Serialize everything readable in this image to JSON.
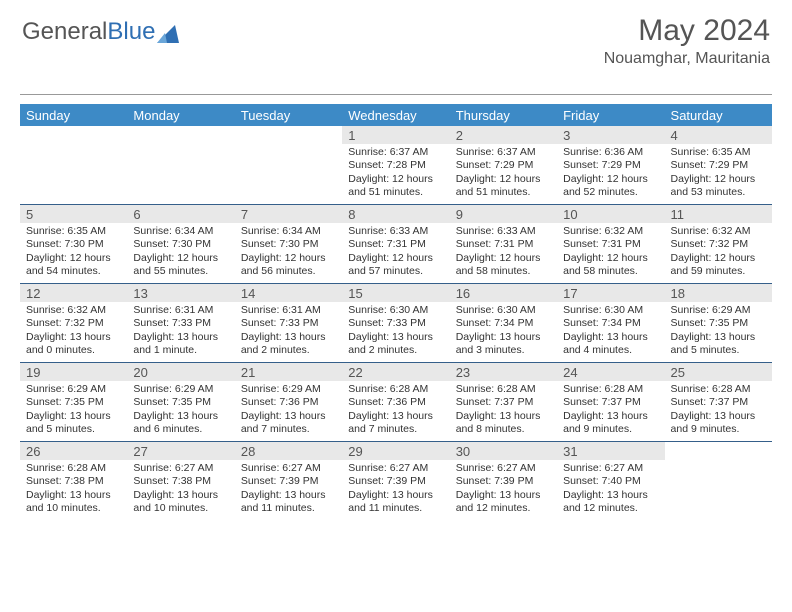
{
  "brand": {
    "part1": "General",
    "part2": "Blue"
  },
  "title": "May 2024",
  "location": "Nouamghar, Mauritania",
  "colors": {
    "header_bg": "#3d8ac6",
    "header_text": "#ffffff",
    "row_border": "#355f8a",
    "daynum_bg": "#e8e8e8",
    "body_text": "#333333",
    "brand_gray": "#555555",
    "brand_blue": "#2f6fb3"
  },
  "day_headers": [
    "Sunday",
    "Monday",
    "Tuesday",
    "Wednesday",
    "Thursday",
    "Friday",
    "Saturday"
  ],
  "weeks": [
    [
      {
        "n": "",
        "sr": "",
        "ss": "",
        "dl": ""
      },
      {
        "n": "",
        "sr": "",
        "ss": "",
        "dl": ""
      },
      {
        "n": "",
        "sr": "",
        "ss": "",
        "dl": ""
      },
      {
        "n": "1",
        "sr": "Sunrise: 6:37 AM",
        "ss": "Sunset: 7:28 PM",
        "dl": "Daylight: 12 hours and 51 minutes."
      },
      {
        "n": "2",
        "sr": "Sunrise: 6:37 AM",
        "ss": "Sunset: 7:29 PM",
        "dl": "Daylight: 12 hours and 51 minutes."
      },
      {
        "n": "3",
        "sr": "Sunrise: 6:36 AM",
        "ss": "Sunset: 7:29 PM",
        "dl": "Daylight: 12 hours and 52 minutes."
      },
      {
        "n": "4",
        "sr": "Sunrise: 6:35 AM",
        "ss": "Sunset: 7:29 PM",
        "dl": "Daylight: 12 hours and 53 minutes."
      }
    ],
    [
      {
        "n": "5",
        "sr": "Sunrise: 6:35 AM",
        "ss": "Sunset: 7:30 PM",
        "dl": "Daylight: 12 hours and 54 minutes."
      },
      {
        "n": "6",
        "sr": "Sunrise: 6:34 AM",
        "ss": "Sunset: 7:30 PM",
        "dl": "Daylight: 12 hours and 55 minutes."
      },
      {
        "n": "7",
        "sr": "Sunrise: 6:34 AM",
        "ss": "Sunset: 7:30 PM",
        "dl": "Daylight: 12 hours and 56 minutes."
      },
      {
        "n": "8",
        "sr": "Sunrise: 6:33 AM",
        "ss": "Sunset: 7:31 PM",
        "dl": "Daylight: 12 hours and 57 minutes."
      },
      {
        "n": "9",
        "sr": "Sunrise: 6:33 AM",
        "ss": "Sunset: 7:31 PM",
        "dl": "Daylight: 12 hours and 58 minutes."
      },
      {
        "n": "10",
        "sr": "Sunrise: 6:32 AM",
        "ss": "Sunset: 7:31 PM",
        "dl": "Daylight: 12 hours and 58 minutes."
      },
      {
        "n": "11",
        "sr": "Sunrise: 6:32 AM",
        "ss": "Sunset: 7:32 PM",
        "dl": "Daylight: 12 hours and 59 minutes."
      }
    ],
    [
      {
        "n": "12",
        "sr": "Sunrise: 6:32 AM",
        "ss": "Sunset: 7:32 PM",
        "dl": "Daylight: 13 hours and 0 minutes."
      },
      {
        "n": "13",
        "sr": "Sunrise: 6:31 AM",
        "ss": "Sunset: 7:33 PM",
        "dl": "Daylight: 13 hours and 1 minute."
      },
      {
        "n": "14",
        "sr": "Sunrise: 6:31 AM",
        "ss": "Sunset: 7:33 PM",
        "dl": "Daylight: 13 hours and 2 minutes."
      },
      {
        "n": "15",
        "sr": "Sunrise: 6:30 AM",
        "ss": "Sunset: 7:33 PM",
        "dl": "Daylight: 13 hours and 2 minutes."
      },
      {
        "n": "16",
        "sr": "Sunrise: 6:30 AM",
        "ss": "Sunset: 7:34 PM",
        "dl": "Daylight: 13 hours and 3 minutes."
      },
      {
        "n": "17",
        "sr": "Sunrise: 6:30 AM",
        "ss": "Sunset: 7:34 PM",
        "dl": "Daylight: 13 hours and 4 minutes."
      },
      {
        "n": "18",
        "sr": "Sunrise: 6:29 AM",
        "ss": "Sunset: 7:35 PM",
        "dl": "Daylight: 13 hours and 5 minutes."
      }
    ],
    [
      {
        "n": "19",
        "sr": "Sunrise: 6:29 AM",
        "ss": "Sunset: 7:35 PM",
        "dl": "Daylight: 13 hours and 5 minutes."
      },
      {
        "n": "20",
        "sr": "Sunrise: 6:29 AM",
        "ss": "Sunset: 7:35 PM",
        "dl": "Daylight: 13 hours and 6 minutes."
      },
      {
        "n": "21",
        "sr": "Sunrise: 6:29 AM",
        "ss": "Sunset: 7:36 PM",
        "dl": "Daylight: 13 hours and 7 minutes."
      },
      {
        "n": "22",
        "sr": "Sunrise: 6:28 AM",
        "ss": "Sunset: 7:36 PM",
        "dl": "Daylight: 13 hours and 7 minutes."
      },
      {
        "n": "23",
        "sr": "Sunrise: 6:28 AM",
        "ss": "Sunset: 7:37 PM",
        "dl": "Daylight: 13 hours and 8 minutes."
      },
      {
        "n": "24",
        "sr": "Sunrise: 6:28 AM",
        "ss": "Sunset: 7:37 PM",
        "dl": "Daylight: 13 hours and 9 minutes."
      },
      {
        "n": "25",
        "sr": "Sunrise: 6:28 AM",
        "ss": "Sunset: 7:37 PM",
        "dl": "Daylight: 13 hours and 9 minutes."
      }
    ],
    [
      {
        "n": "26",
        "sr": "Sunrise: 6:28 AM",
        "ss": "Sunset: 7:38 PM",
        "dl": "Daylight: 13 hours and 10 minutes."
      },
      {
        "n": "27",
        "sr": "Sunrise: 6:27 AM",
        "ss": "Sunset: 7:38 PM",
        "dl": "Daylight: 13 hours and 10 minutes."
      },
      {
        "n": "28",
        "sr": "Sunrise: 6:27 AM",
        "ss": "Sunset: 7:39 PM",
        "dl": "Daylight: 13 hours and 11 minutes."
      },
      {
        "n": "29",
        "sr": "Sunrise: 6:27 AM",
        "ss": "Sunset: 7:39 PM",
        "dl": "Daylight: 13 hours and 11 minutes."
      },
      {
        "n": "30",
        "sr": "Sunrise: 6:27 AM",
        "ss": "Sunset: 7:39 PM",
        "dl": "Daylight: 13 hours and 12 minutes."
      },
      {
        "n": "31",
        "sr": "Sunrise: 6:27 AM",
        "ss": "Sunset: 7:40 PM",
        "dl": "Daylight: 13 hours and 12 minutes."
      },
      {
        "n": "",
        "sr": "",
        "ss": "",
        "dl": ""
      }
    ]
  ]
}
